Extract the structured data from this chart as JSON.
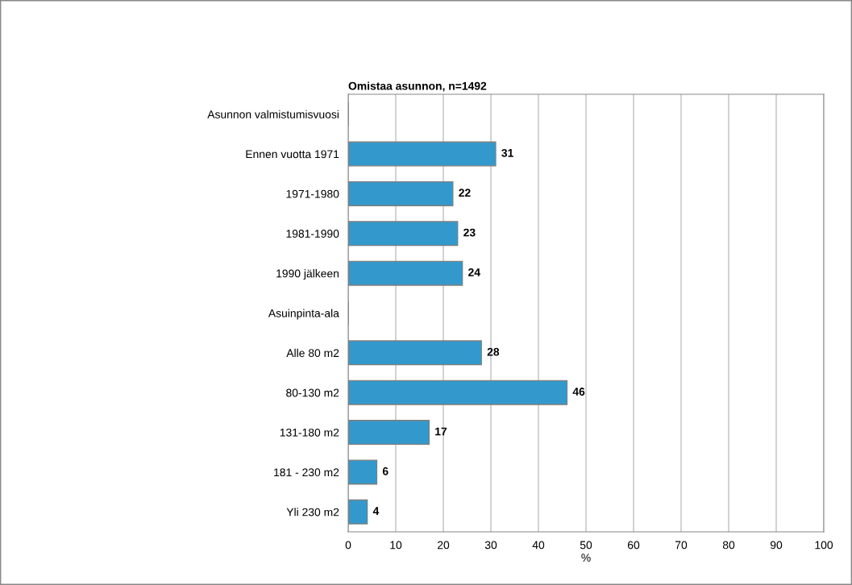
{
  "chart_data": {
    "type": "bar",
    "orientation": "horizontal",
    "title": "Omistaa asunnon, n=1492",
    "xlabel": "%",
    "categories": [
      "Asunnon valmistumisvuosi",
      "Ennen vuotta 1971",
      "1971-1980",
      "1981-1990",
      "1990 jälkeen",
      "Asuinpinta-ala",
      "Alle 80 m2",
      "80-130 m2",
      "131-180 m2",
      "181 - 230 m2",
      "Yli 230 m2"
    ],
    "values": [
      null,
      31,
      22,
      23,
      24,
      null,
      28,
      46,
      17,
      6,
      4
    ],
    "color": "#3399cc",
    "data_labels": true,
    "xlim": [
      0,
      100
    ],
    "xticks": [
      0,
      10,
      20,
      30,
      40,
      50,
      60,
      70,
      80,
      90,
      100
    ],
    "grid": "x",
    "legend": false
  }
}
